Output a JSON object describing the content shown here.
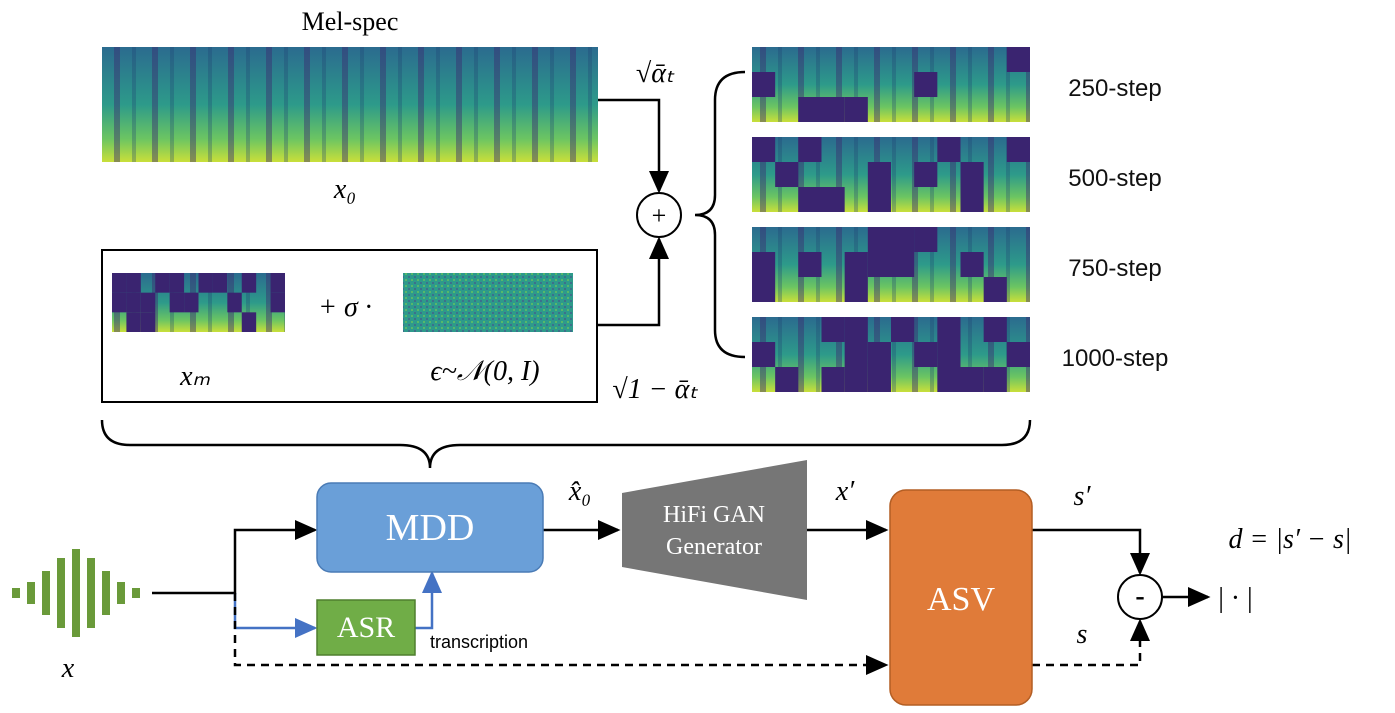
{
  "top": {
    "mel_label": "Mel-spec",
    "x0": "x₀",
    "sqrt_alpha": "√ᾱₜ",
    "sqrt_one_minus": "√1 − ᾱₜ",
    "plus": "+",
    "xm": "xₘ",
    "sigma": "+ σ ·",
    "epsilon": "ϵ~𝒩(0, I)",
    "steps": [
      "250-step",
      "500-step",
      "750-step",
      "1000-step"
    ]
  },
  "pipeline": {
    "x_hat": "x̂₀",
    "mdd": "MDD",
    "hifi": [
      "HiFi GAN",
      "Generator"
    ],
    "x_prime": "x′",
    "asv": "ASV",
    "s_prime": "s′",
    "s": "s",
    "minus": "-",
    "abs": "| · |",
    "distance": "d = |s′ − s|",
    "asr": "ASR",
    "transcription": "transcription",
    "x": "x"
  }
}
